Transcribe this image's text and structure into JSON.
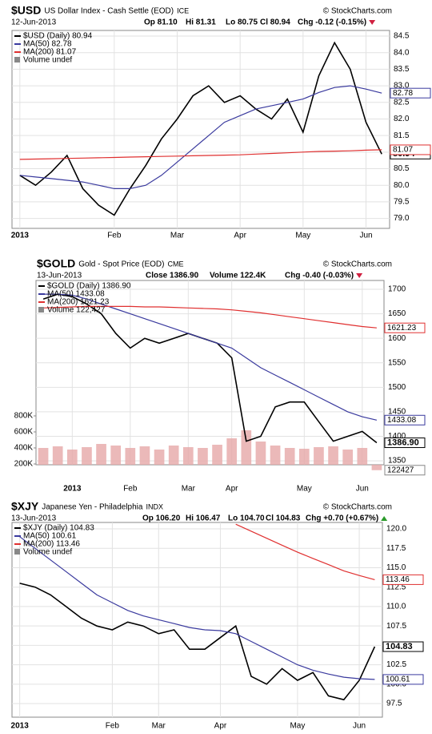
{
  "chart_data": [
    {
      "type": "line",
      "symbol": "$USD",
      "name": "US Dollar Index - Cash Settle (EOD)",
      "exchange": "ICE",
      "credit": "© StockCharts.com",
      "info": [
        "12-Jun-2013",
        "Op 81.10",
        "Hi 81.31",
        "Lo 80.75",
        "Cl 80.94",
        "Chg -0.12 (-0.15%)"
      ],
      "volume_note": "Volume undef",
      "categories": [
        "2013",
        null,
        null,
        null,
        null,
        null,
        "Feb",
        null,
        null,
        null,
        "Mar",
        null,
        null,
        null,
        "Apr",
        null,
        null,
        null,
        "May",
        null,
        null,
        null,
        "Jun",
        null
      ],
      "series": [
        {
          "name": "$USD (Daily) 80.94",
          "color": "#000000",
          "values": [
            80.3,
            80.0,
            80.4,
            80.9,
            79.9,
            79.4,
            79.1,
            79.9,
            80.6,
            81.4,
            82.0,
            82.7,
            83.0,
            82.5,
            82.7,
            82.3,
            82.0,
            82.6,
            81.6,
            83.3,
            84.3,
            83.5,
            81.9,
            80.94
          ]
        },
        {
          "name": "MA(50) 82.78",
          "color": "#3a3a9e",
          "values": [
            80.3,
            80.25,
            80.2,
            80.15,
            80.1,
            80.0,
            79.9,
            79.9,
            80.0,
            80.3,
            80.7,
            81.1,
            81.5,
            81.9,
            82.1,
            82.3,
            82.4,
            82.5,
            82.6,
            82.8,
            82.95,
            83.0,
            82.9,
            82.78
          ]
        },
        {
          "name": "MA(200) 81.07",
          "color": "#e03030",
          "values": [
            80.78,
            80.79,
            80.8,
            80.81,
            80.82,
            80.83,
            80.84,
            80.85,
            80.86,
            80.87,
            80.88,
            80.89,
            80.9,
            80.91,
            80.92,
            80.94,
            80.96,
            80.98,
            81.0,
            81.02,
            81.03,
            81.04,
            81.06,
            81.07
          ]
        }
      ],
      "ylim": [
        78.7,
        84.67
      ],
      "yticks": [
        {
          "value": 79,
          "label": "79.0"
        },
        79.5,
        {
          "value": 80,
          "label": "80.0"
        },
        80.5,
        {
          "value": 81,
          "label": "81.0"
        },
        81.5,
        {
          "value": 82,
          "label": "82.0"
        },
        82.5,
        {
          "value": 83,
          "label": "83.0"
        },
        83.5,
        {
          "value": 84,
          "label": "84.0"
        },
        84.5
      ],
      "grid": true
    },
    {
      "type": "line",
      "symbol": "$GOLD",
      "name": "Gold - Spot Price (EOD)",
      "exchange": "CME",
      "credit": "© StockCharts.com",
      "info": [
        "13-Jun-2013",
        "Close 1386.90",
        "Volume 122.4K",
        "Chg -0.40 (-0.03%)"
      ],
      "categories": [
        null,
        null,
        "2013",
        null,
        null,
        null,
        "Feb",
        null,
        null,
        null,
        "Mar",
        null,
        null,
        "Apr",
        null,
        null,
        null,
        null,
        "May",
        null,
        null,
        null,
        "Jun",
        null
      ],
      "series": [
        {
          "name": "$GOLD (Daily) 1386.90",
          "color": "#000000",
          "values": [
            1680,
            1690,
            1685,
            1670,
            1650,
            1610,
            1580,
            1600,
            1590,
            1600,
            1610,
            1600,
            1590,
            1560,
            1390,
            1400,
            1460,
            1470,
            1470,
            1430,
            1390,
            1400,
            1410,
            1386.9
          ],
          "value_labels": [
            null,
            null,
            null,
            null,
            null,
            null,
            null,
            null,
            null,
            null,
            null,
            null,
            null,
            null,
            null,
            null,
            null,
            null,
            null,
            null,
            null,
            null,
            null,
            "1386.90"
          ]
        },
        {
          "name": "MA(50) 1433.08",
          "color": "#3a3a9e",
          "values": [
            1690,
            1690,
            1688,
            1680,
            1670,
            1660,
            1650,
            1640,
            1630,
            1620,
            1610,
            1600,
            1590,
            1580,
            1560,
            1540,
            1525,
            1510,
            1495,
            1480,
            1465,
            1450,
            1440,
            1433.08
          ]
        },
        {
          "name": "MA(200) 1621.23",
          "color": "#e03030",
          "values": [
            1662,
            1663,
            1664,
            1665,
            1665,
            1665,
            1665,
            1664,
            1664,
            1663,
            1662,
            1661,
            1660,
            1658,
            1655,
            1652,
            1648,
            1644,
            1640,
            1636,
            1632,
            1628,
            1624,
            1621.23
          ]
        },
        {
          "name": "Volume 122,427",
          "color": "#e6a8a8",
          "axis": "y2",
          "values": [
            400000,
            420000,
            380000,
            410000,
            450000,
            430000,
            400000,
            420000,
            380000,
            430000,
            410000,
            400000,
            440000,
            520000,
            620000,
            480000,
            430000,
            400000,
            390000,
            410000,
            420000,
            380000,
            400000,
            122427
          ]
        }
      ],
      "ylim": [
        1342,
        1718
      ],
      "yticks": [
        1350,
        1400,
        1450,
        1500,
        1550,
        1600,
        1650,
        1700
      ],
      "y2lim": [
        190000,
        2490000
      ],
      "y2ticks": [
        {
          "value": 200000,
          "label": "200K"
        },
        {
          "value": 400000,
          "label": "400K"
        },
        {
          "value": 600000,
          "label": "600K"
        },
        {
          "value": 800000,
          "label": "800K"
        }
      ],
      "grid": true
    },
    {
      "type": "line",
      "symbol": "$XJY",
      "name": "Japanese Yen - Philadelphia",
      "exchange": "INDX",
      "credit": "© StockCharts.com",
      "info": [
        "13-Jun-2013",
        "Op 106.20",
        "Hi 106.47",
        "Lo 104.70",
        "Cl 104.83",
        "Chg +0.70 (+0.67%)"
      ],
      "volume_note": "Volume undef",
      "categories": [
        "2013",
        null,
        null,
        null,
        null,
        null,
        "Feb",
        null,
        null,
        "Mar",
        null,
        null,
        null,
        "Apr",
        null,
        null,
        null,
        null,
        "May",
        null,
        null,
        null,
        "Jun",
        null
      ],
      "series": [
        {
          "name": "$XJY (Daily) 104.83",
          "color": "#000000",
          "values": [
            113.0,
            112.5,
            111.5,
            110.0,
            108.5,
            107.5,
            107.0,
            108.0,
            107.5,
            106.5,
            107.0,
            104.5,
            104.5,
            106.0,
            107.5,
            101.0,
            100.0,
            102.0,
            100.5,
            101.5,
            98.5,
            98.0,
            100.5,
            104.83
          ]
        },
        {
          "name": "MA(50) 100.61",
          "color": "#3a3a9e",
          "values": [
            119.0,
            117.5,
            116.0,
            114.5,
            113.0,
            111.5,
            110.5,
            109.5,
            108.8,
            108.3,
            107.8,
            107.3,
            107.0,
            106.9,
            106.5,
            105.5,
            104.5,
            103.5,
            102.5,
            101.8,
            101.3,
            100.9,
            100.7,
            100.61
          ]
        },
        {
          "name": "MA(200) 113.46",
          "color": "#e03030",
          "values": [
            null,
            null,
            null,
            null,
            null,
            null,
            null,
            null,
            null,
            null,
            null,
            null,
            null,
            null,
            120.6,
            119.7,
            118.8,
            117.9,
            117.0,
            116.2,
            115.4,
            114.6,
            114.0,
            113.46
          ]
        }
      ],
      "ylim": [
        95.75,
        120.83
      ],
      "yticks": [
        97.5,
        {
          "value": 100,
          "label": "100.0"
        },
        102.5,
        {
          "value": 105,
          "label": "105.0"
        },
        107.5,
        {
          "value": 110,
          "label": "110.0"
        },
        112.5,
        {
          "value": 115,
          "label": "115.0"
        },
        117.5,
        {
          "value": 120,
          "label": "120.0"
        }
      ],
      "grid": true
    }
  ]
}
